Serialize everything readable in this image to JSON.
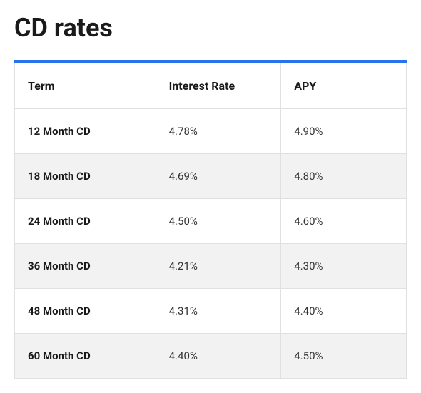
{
  "title": "CD rates",
  "table": {
    "type": "table",
    "accent_color": "#2873eb",
    "border_color": "#e0e0e0",
    "zebra_color": "#f2f2f2",
    "background_color": "#ffffff",
    "header_fontsize": 16,
    "cell_fontsize": 15,
    "columns": [
      {
        "key": "term",
        "label": "Term",
        "width": "36%",
        "bold": true
      },
      {
        "key": "rate",
        "label": "Interest Rate",
        "width": "32%",
        "bold": false
      },
      {
        "key": "apy",
        "label": "APY",
        "width": "32%",
        "bold": false
      }
    ],
    "rows": [
      {
        "term": "12 Month CD",
        "rate": "4.78%",
        "apy": "4.90%"
      },
      {
        "term": "18 Month CD",
        "rate": "4.69%",
        "apy": "4.80%"
      },
      {
        "term": "24 Month CD",
        "rate": "4.50%",
        "apy": "4.60%"
      },
      {
        "term": "36 Month CD",
        "rate": "4.21%",
        "apy": "4.30%"
      },
      {
        "term": "48 Month CD",
        "rate": "4.31%",
        "apy": "4.40%"
      },
      {
        "term": "60 Month CD",
        "rate": "4.40%",
        "apy": "4.50%"
      }
    ]
  }
}
